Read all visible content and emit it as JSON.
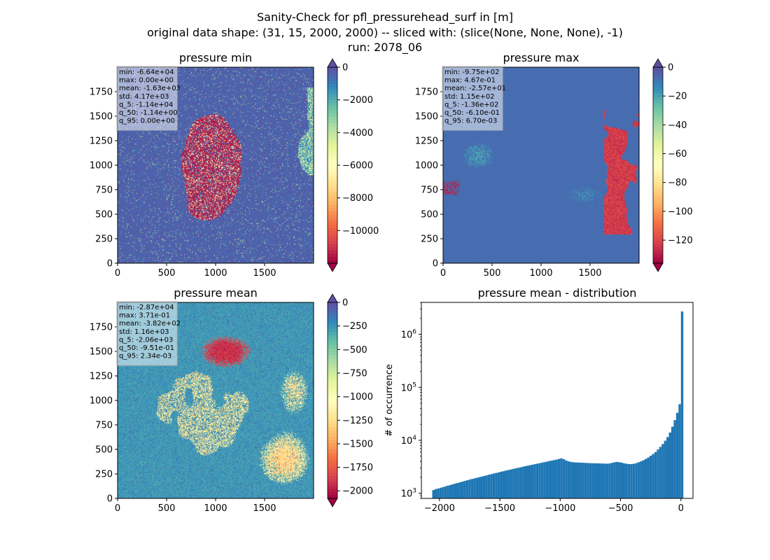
{
  "suptitle": {
    "line1": "Sanity-Check for pfl_pressurehead_surf in [m]",
    "line2": "original data shape: (31, 15, 2000, 2000) -- sliced with: (slice(None, None, None), -1)",
    "line3": "run: 2078_06"
  },
  "chart_data": [
    {
      "type": "heatmap",
      "title": "pressure min",
      "xlim": [
        0,
        2000
      ],
      "ylim": [
        0,
        2000
      ],
      "x_ticks": [
        "0",
        "500",
        "1000",
        "1500"
      ],
      "y_ticks": [
        "0",
        "250",
        "500",
        "750",
        "1000",
        "1250",
        "1500",
        "1750"
      ],
      "colormap": "Spectral",
      "colorbar": {
        "range": [
          -12000,
          0
        ],
        "ticks": [
          "0",
          "−2000",
          "−4000",
          "−6000",
          "−8000",
          "−10000"
        ],
        "extend": "both"
      },
      "stats": [
        "min: -6.64e+04",
        "max: 0.00e+00",
        "mean: -1.63e+03",
        "std: 4.17e+03",
        "q_5: -1.14e+04",
        "q_50: -1.14e+00",
        "q_95: 0.00e+00"
      ]
    },
    {
      "type": "heatmap",
      "title": "pressure max",
      "xlim": [
        0,
        2000
      ],
      "ylim": [
        0,
        2000
      ],
      "x_ticks": [
        "0",
        "500",
        "1000",
        "1500"
      ],
      "y_ticks": [
        "0",
        "250",
        "500",
        "750",
        "1000",
        "1250",
        "1500",
        "1750"
      ],
      "colormap": "Spectral",
      "colorbar": {
        "range": [
          -136,
          0
        ],
        "ticks": [
          "0",
          "−20",
          "−40",
          "−60",
          "−80",
          "−100",
          "−120"
        ],
        "extend": "both"
      },
      "stats": [
        "min: -9.75e+02",
        "max: 4.67e-01",
        "mean: -2.57e+01",
        "std: 1.15e+02",
        "q_5: -1.36e+02",
        "q_50: -6.10e-01",
        "q_95: 6.70e-03"
      ]
    },
    {
      "type": "heatmap",
      "title": "pressure mean",
      "xlim": [
        0,
        2000
      ],
      "ylim": [
        0,
        2000
      ],
      "x_ticks": [
        "0",
        "500",
        "1000",
        "1500"
      ],
      "y_ticks": [
        "0",
        "250",
        "500",
        "750",
        "1000",
        "1250",
        "1500",
        "1750"
      ],
      "colormap": "Spectral",
      "colorbar": {
        "range": [
          -2080,
          0
        ],
        "ticks": [
          "0",
          "−250",
          "−500",
          "−750",
          "−1000",
          "−1250",
          "−1500",
          "−1750",
          "−2000"
        ],
        "extend": "both"
      },
      "stats": [
        "min: -2.87e+04",
        "max: 3.71e-01",
        "mean: -3.82e+02",
        "std: 1.16e+03",
        "q_5: -2.06e+03",
        "q_50: -9.51e-01",
        "q_95: 2.34e-03"
      ]
    },
    {
      "type": "bar",
      "title": "pressure mean - distribution",
      "ylabel": "# of occurrence",
      "y_scale": "log",
      "ylim": [
        800,
        4000000
      ],
      "xlim": [
        -2150,
        100
      ],
      "x_ticks": [
        "−2000",
        "−1500",
        "−1000",
        "−500",
        "0"
      ],
      "y_ticks": [
        "10",
        "10",
        "10",
        "10"
      ],
      "y_tick_exponents": [
        "3",
        "4",
        "5",
        "6"
      ],
      "color": "#1f77b4",
      "bin_width": 20,
      "bins": [
        [
          -2060,
          1150
        ],
        [
          -2040,
          1200
        ],
        [
          -2020,
          1230
        ],
        [
          -2000,
          1270
        ],
        [
          -1980,
          1310
        ],
        [
          -1960,
          1350
        ],
        [
          -1940,
          1390
        ],
        [
          -1920,
          1430
        ],
        [
          -1900,
          1480
        ],
        [
          -1880,
          1520
        ],
        [
          -1860,
          1560
        ],
        [
          -1840,
          1610
        ],
        [
          -1820,
          1660
        ],
        [
          -1800,
          1710
        ],
        [
          -1780,
          1760
        ],
        [
          -1760,
          1810
        ],
        [
          -1740,
          1860
        ],
        [
          -1720,
          1910
        ],
        [
          -1700,
          1960
        ],
        [
          -1680,
          2010
        ],
        [
          -1660,
          2070
        ],
        [
          -1640,
          2120
        ],
        [
          -1620,
          2180
        ],
        [
          -1600,
          2240
        ],
        [
          -1580,
          2300
        ],
        [
          -1560,
          2360
        ],
        [
          -1540,
          2420
        ],
        [
          -1520,
          2480
        ],
        [
          -1500,
          2550
        ],
        [
          -1480,
          2610
        ],
        [
          -1460,
          2680
        ],
        [
          -1440,
          2740
        ],
        [
          -1420,
          2810
        ],
        [
          -1400,
          2880
        ],
        [
          -1380,
          2950
        ],
        [
          -1360,
          3020
        ],
        [
          -1340,
          3090
        ],
        [
          -1320,
          3160
        ],
        [
          -1300,
          3240
        ],
        [
          -1280,
          3310
        ],
        [
          -1260,
          3390
        ],
        [
          -1240,
          3460
        ],
        [
          -1220,
          3540
        ],
        [
          -1200,
          3620
        ],
        [
          -1180,
          3700
        ],
        [
          -1160,
          3790
        ],
        [
          -1140,
          3870
        ],
        [
          -1120,
          3960
        ],
        [
          -1100,
          4050
        ],
        [
          -1080,
          4140
        ],
        [
          -1060,
          4230
        ],
        [
          -1040,
          4330
        ],
        [
          -1020,
          4450
        ],
        [
          -1000,
          4560
        ],
        [
          -980,
          4400
        ],
        [
          -960,
          4150
        ],
        [
          -940,
          4000
        ],
        [
          -920,
          3900
        ],
        [
          -900,
          3850
        ],
        [
          -880,
          3820
        ],
        [
          -860,
          3800
        ],
        [
          -840,
          3780
        ],
        [
          -820,
          3760
        ],
        [
          -800,
          3740
        ],
        [
          -780,
          3720
        ],
        [
          -760,
          3700
        ],
        [
          -740,
          3690
        ],
        [
          -720,
          3680
        ],
        [
          -700,
          3670
        ],
        [
          -680,
          3660
        ],
        [
          -660,
          3640
        ],
        [
          -640,
          3630
        ],
        [
          -620,
          3620
        ],
        [
          -600,
          3650
        ],
        [
          -580,
          3750
        ],
        [
          -560,
          3850
        ],
        [
          -540,
          3900
        ],
        [
          -520,
          3860
        ],
        [
          -500,
          3780
        ],
        [
          -480,
          3680
        ],
        [
          -460,
          3600
        ],
        [
          -440,
          3560
        ],
        [
          -420,
          3560
        ],
        [
          -400,
          3600
        ],
        [
          -380,
          3700
        ],
        [
          -360,
          3850
        ],
        [
          -340,
          4000
        ],
        [
          -320,
          4200
        ],
        [
          -300,
          4450
        ],
        [
          -280,
          4750
        ],
        [
          -260,
          5100
        ],
        [
          -240,
          5500
        ],
        [
          -220,
          6000
        ],
        [
          -200,
          6700
        ],
        [
          -180,
          7500
        ],
        [
          -160,
          8500
        ],
        [
          -140,
          9800
        ],
        [
          -120,
          11500
        ],
        [
          -100,
          14000
        ],
        [
          -80,
          18000
        ],
        [
          -60,
          24000
        ],
        [
          -40,
          33000
        ],
        [
          -20,
          48000
        ],
        [
          0,
          2700000
        ]
      ]
    }
  ]
}
